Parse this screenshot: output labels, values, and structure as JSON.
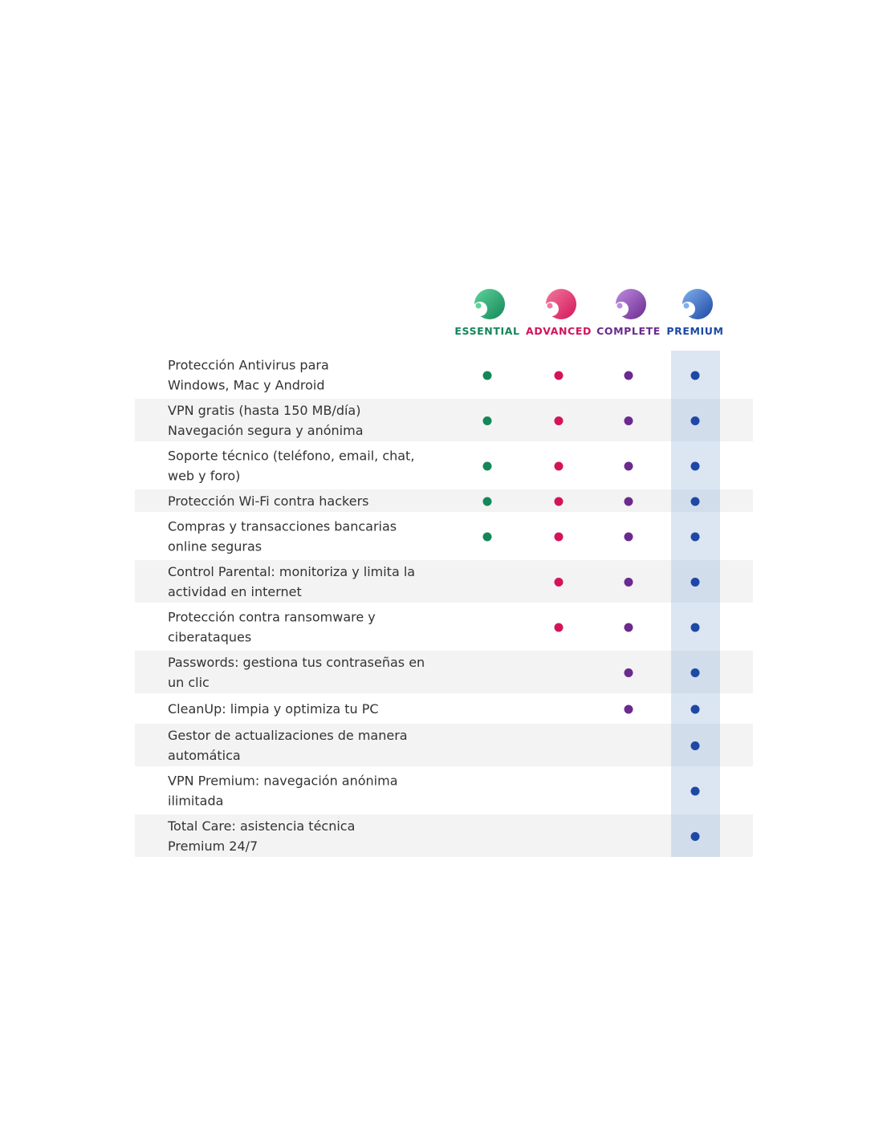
{
  "plans": [
    {
      "name": "ESSENTIAL",
      "color": "#14865a",
      "light": "#5fd49a"
    },
    {
      "name": "ADVANCED",
      "color": "#d3145a",
      "light": "#f27a9e"
    },
    {
      "name": "COMPLETE",
      "color": "#6a2a8e",
      "light": "#c08ce0"
    },
    {
      "name": "PREMIUM",
      "color": "#1d48a6",
      "light": "#7fb0ec"
    }
  ],
  "rows": [
    {
      "lines": [
        "Protección Antivirus para",
        "Windows, Mac y Android"
      ],
      "included": [
        true,
        true,
        true,
        true
      ]
    },
    {
      "lines": [
        "VPN gratis (hasta 150 MB/día)",
        "Navegación segura y anónima"
      ],
      "included": [
        true,
        true,
        true,
        true
      ]
    },
    {
      "lines": [
        "Soporte técnico (teléfono, email, chat,",
        "web y foro)"
      ],
      "included": [
        true,
        true,
        true,
        true
      ]
    },
    {
      "lines": [
        "Protección Wi-Fi contra hackers"
      ],
      "included": [
        true,
        true,
        true,
        true
      ]
    },
    {
      "lines": [
        "Compras y transacciones bancarias",
        "online seguras"
      ],
      "included": [
        true,
        true,
        true,
        true
      ]
    },
    {
      "lines": [
        "Control Parental: monitoriza y limita la",
        "actividad en internet"
      ],
      "included": [
        false,
        true,
        true,
        true
      ]
    },
    {
      "lines": [
        "Protección contra ransomware y",
        "ciberataques"
      ],
      "included": [
        false,
        true,
        true,
        true
      ]
    },
    {
      "lines": [
        "Passwords: gestiona tus contraseñas en",
        "un clic"
      ],
      "included": [
        false,
        false,
        true,
        true
      ]
    },
    {
      "lines": [
        "CleanUp: limpia y optimiza tu PC"
      ],
      "included": [
        false,
        false,
        true,
        true
      ]
    },
    {
      "lines": [
        "Gestor de actualizaciones de manera",
        "automática"
      ],
      "included": [
        false,
        false,
        false,
        true
      ]
    },
    {
      "lines": [
        "VPN Premium: navegación anónima",
        "ilimitada"
      ],
      "included": [
        false,
        false,
        false,
        true
      ]
    },
    {
      "lines": [
        "Total Care: asistencia técnica",
        "Premium 24/7"
      ],
      "included": [
        false,
        false,
        false,
        true
      ]
    }
  ]
}
